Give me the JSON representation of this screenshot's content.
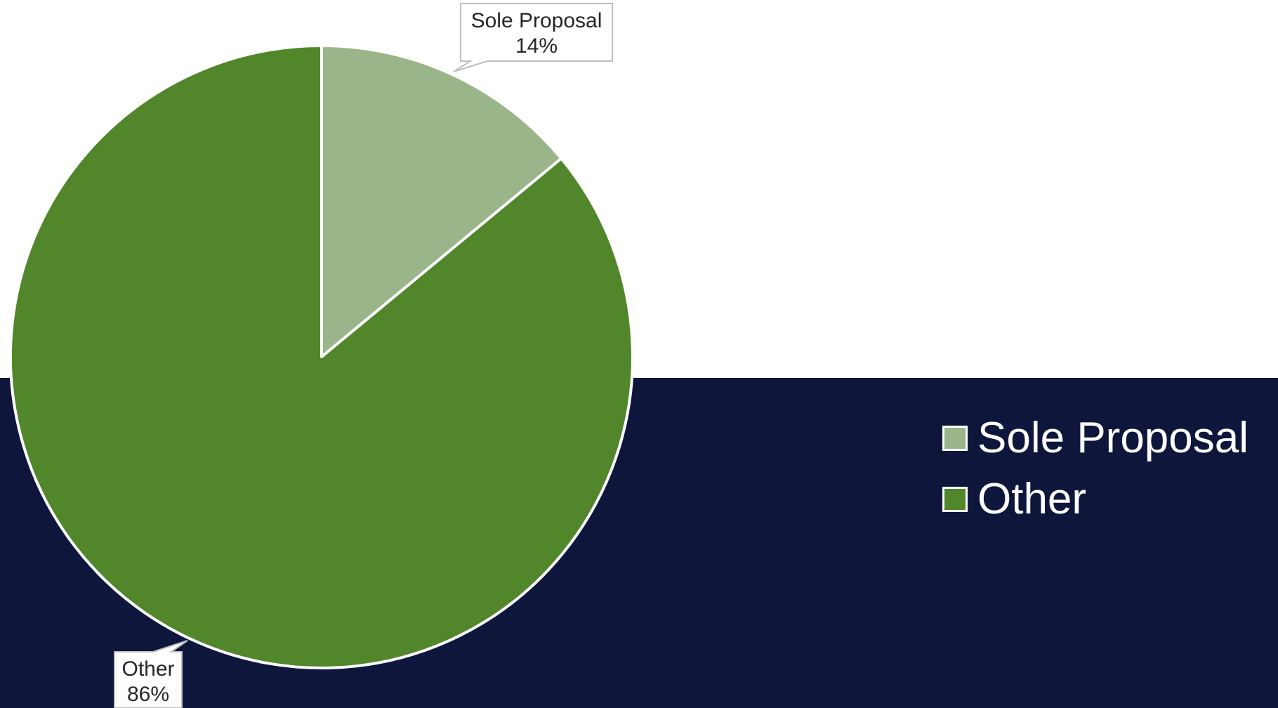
{
  "chart_data": {
    "type": "pie",
    "categories": [
      "Sole Proposal",
      "Other"
    ],
    "values": [
      14,
      86
    ],
    "units": "%",
    "data_labels": [
      {
        "category": "Sole Proposal",
        "value": "14%"
      },
      {
        "category": "Other",
        "value": "86%"
      }
    ],
    "colors": [
      "#9bb58b",
      "#52862b"
    ],
    "legend_position": "right",
    "start_angle": "12 o'clock, clockwise"
  },
  "legend": {
    "items": [
      {
        "label": "Sole Proposal",
        "color": "#9bb58b"
      },
      {
        "label": "Other",
        "color": "#52862b"
      }
    ]
  },
  "background": {
    "top": "#ffffff",
    "bottom": "#0e173b"
  }
}
